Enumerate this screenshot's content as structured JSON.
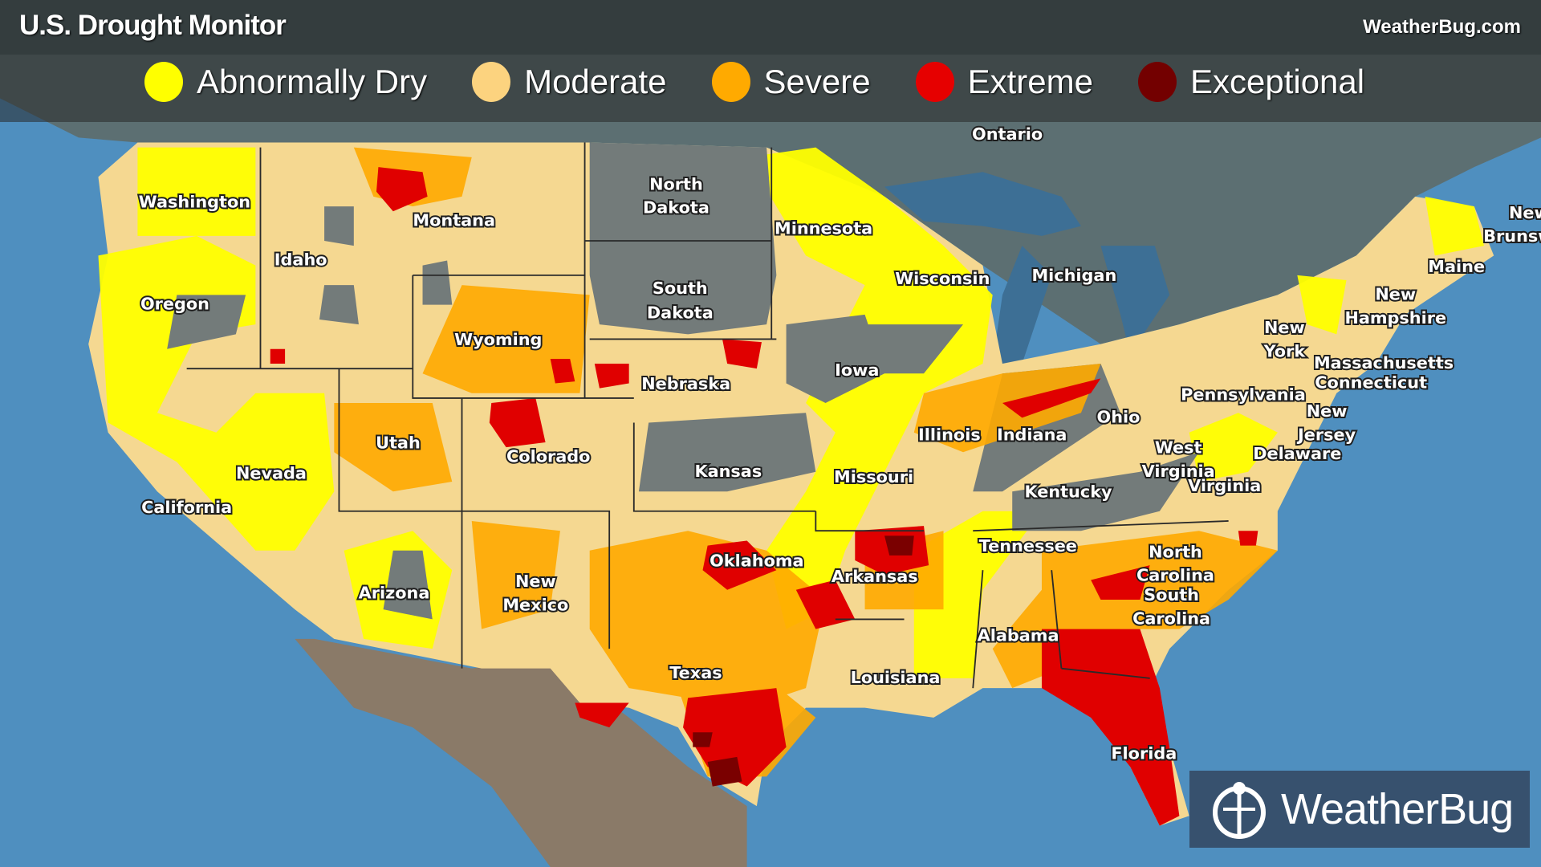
{
  "header": {
    "title": "U.S. Drought Monitor",
    "site": "WeatherBug.com"
  },
  "legend": [
    {
      "label": "Abnormally Dry",
      "color": "#ffff00"
    },
    {
      "label": "Moderate",
      "color": "#fcd37f"
    },
    {
      "label": "Severe",
      "color": "#ffaa00"
    },
    {
      "label": "Extreme",
      "color": "#e60000"
    },
    {
      "label": "Exceptional",
      "color": "#730000"
    }
  ],
  "logo": {
    "text": "WeatherBug",
    "icon": "weatherbug-logo-icon"
  },
  "labels": {
    "washington": "Washington",
    "montana": "Montana",
    "idaho": "Idaho",
    "oregon": "Oregon",
    "wyoming": "Wyoming",
    "utah": "Utah",
    "nevada": "Nevada",
    "california": "California",
    "colorado": "Colorado",
    "arizona": "Arizona",
    "new_mexico_1": "New",
    "new_mexico_2": "Mexico",
    "north_dakota_1": "North",
    "north_dakota_2": "Dakota",
    "south_dakota_1": "South",
    "south_dakota_2": "Dakota",
    "nebraska": "Nebraska",
    "kansas": "Kansas",
    "oklahoma": "Oklahoma",
    "texas": "Texas",
    "minnesota": "Minnesota",
    "iowa": "Iowa",
    "missouri": "Missouri",
    "arkansas": "Arkansas",
    "louisiana": "Louisiana",
    "wisconsin": "Wisconsin",
    "illinois": "Illinois",
    "michigan": "Michigan",
    "indiana": "Indiana",
    "ohio": "Ohio",
    "kentucky": "Kentucky",
    "tennessee": "Tennessee",
    "alabama": "Alabama",
    "ontario": "Ontario",
    "pennsylvania": "Pennsylvania",
    "new_york_1": "New",
    "new_york_2": "York",
    "west_virginia_1": "West",
    "west_virginia_2": "Virginia",
    "virginia": "Virginia",
    "north_carolina_1": "North",
    "north_carolina_2": "Carolina",
    "south_carolina_1": "South",
    "south_carolina_2": "Carolina",
    "florida": "Florida",
    "maine": "Maine",
    "new_hampshire_1": "New",
    "new_hampshire_2": "Hampshire",
    "massachusetts": "Massachusetts",
    "connecticut": "Connecticut",
    "new_jersey_1": "New",
    "new_jersey_2": "Jersey",
    "delaware": "Delaware",
    "new_brunswick_1": "New",
    "new_brunswick_2": "Brunsw"
  }
}
